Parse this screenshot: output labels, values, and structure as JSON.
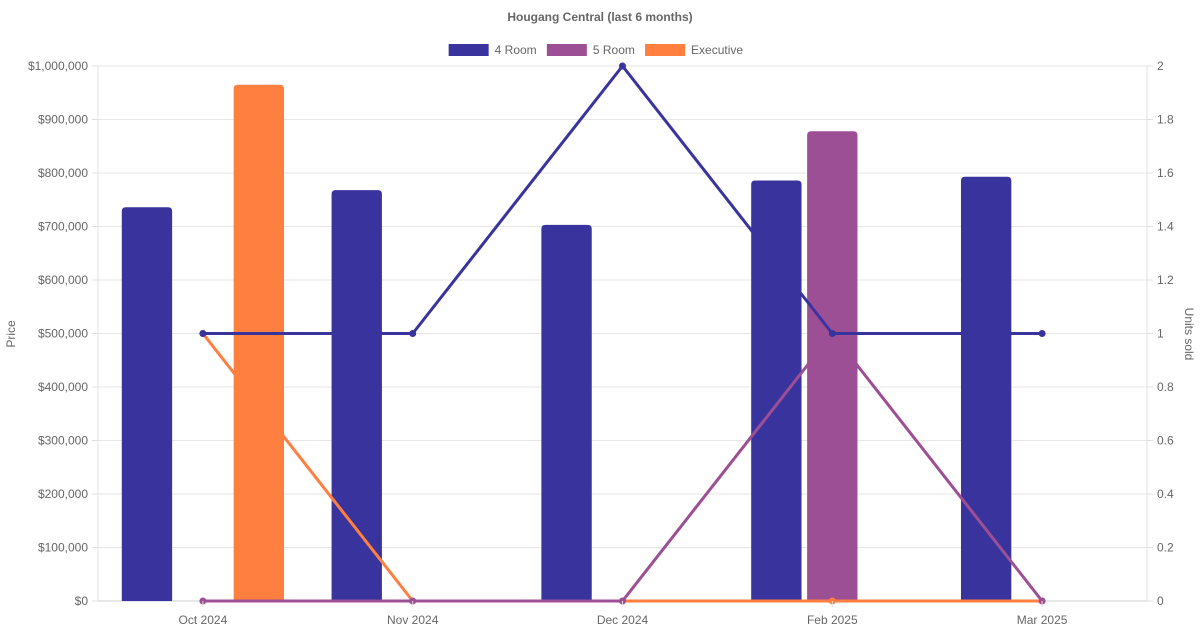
{
  "chart_data": {
    "type": "bar",
    "title": "Hougang Central (last 6 months)",
    "categories": [
      "Oct 2024",
      "Nov 2024",
      "Dec 2024",
      "Feb 2025",
      "Mar 2025"
    ],
    "y_left": {
      "label": "Price",
      "range": [
        0,
        1000000
      ],
      "ticks": [
        "$0",
        "$100,000",
        "$200,000",
        "$300,000",
        "$400,000",
        "$500,000",
        "$600,000",
        "$700,000",
        "$800,000",
        "$900,000",
        "$1,000,000"
      ]
    },
    "y_right": {
      "label": "Units sold",
      "range": [
        0,
        2
      ],
      "ticks": [
        "0",
        "0.2",
        "0.4",
        "0.6",
        "0.8",
        "1",
        "1.2",
        "1.4",
        "1.6",
        "1.8",
        "2"
      ]
    },
    "legend_position": "top-center",
    "grid": true,
    "series": [
      {
        "name": "4 Room",
        "color": "#39339e",
        "price": [
          736000,
          768000,
          703000,
          786000,
          793000
        ],
        "units": [
          1,
          1,
          2,
          1,
          1
        ]
      },
      {
        "name": "5 Room",
        "color": "#9d4f95",
        "price": [
          null,
          null,
          null,
          878000,
          null
        ],
        "units": [
          0,
          0,
          0,
          1,
          0
        ]
      },
      {
        "name": "Executive",
        "color": "#ff7f41",
        "price": [
          965000,
          null,
          null,
          null,
          null
        ],
        "units": [
          1,
          0,
          0,
          0,
          0
        ]
      }
    ]
  }
}
